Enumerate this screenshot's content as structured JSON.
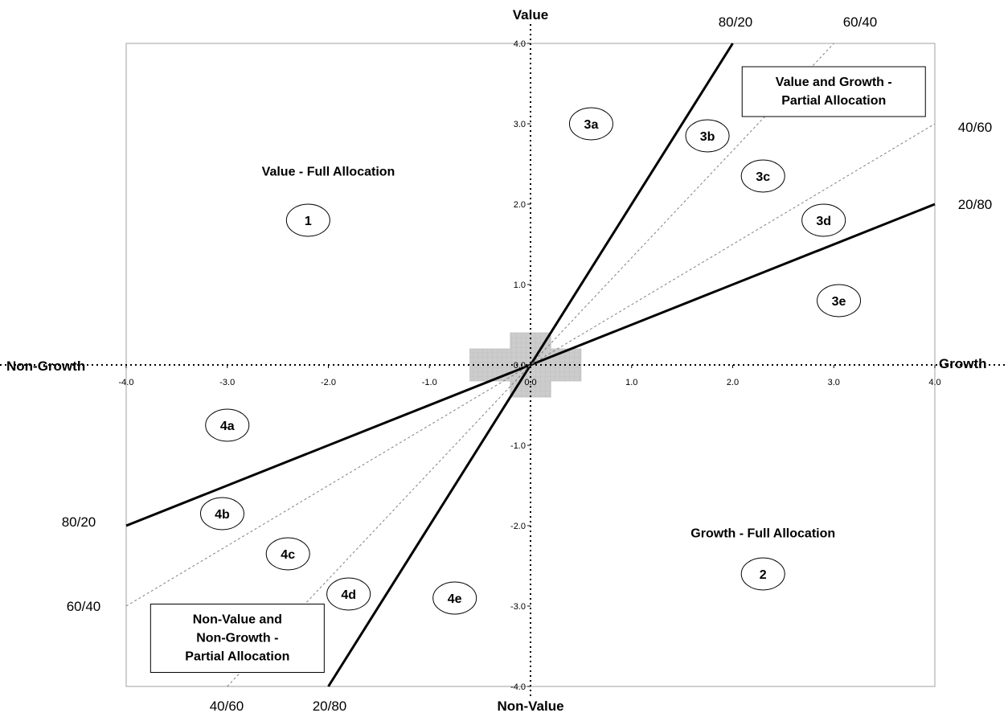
{
  "chart_data": {
    "type": "scatter",
    "title": "",
    "xlim": [
      -4.0,
      4.0
    ],
    "ylim": [
      -4.0,
      4.0
    ],
    "x_ticks": [
      "-4.0",
      "-3.0",
      "-2.0",
      "-1.0",
      "0.0",
      "1.0",
      "2.0",
      "3.0",
      "4.0"
    ],
    "y_ticks": [
      "-4.0",
      "-3.0",
      "-2.0",
      "-1.0",
      "0.0",
      "1.0",
      "2.0",
      "3.0",
      "4.0"
    ],
    "axis_labels": {
      "top": "Value",
      "bottom": "Non-Value",
      "left": "Non-Growth",
      "right": "Growth"
    },
    "grid": false,
    "lines": [
      {
        "style": "solid",
        "slope": 2.0,
        "end_labels": [
          "20/80",
          "80/20"
        ]
      },
      {
        "style": "solid",
        "slope": 0.5,
        "end_labels": [
          "80/20",
          "20/80"
        ]
      },
      {
        "style": "dashed",
        "slope": 1.333,
        "end_labels": [
          "40/60",
          "60/40"
        ]
      },
      {
        "style": "dashed",
        "slope": 0.75,
        "end_labels": [
          "60/40",
          "40/60"
        ]
      }
    ],
    "region_titles": [
      {
        "text": "Value - Full Allocation",
        "x": -2.0,
        "y": 2.4,
        "boxed": false
      },
      {
        "text": "Growth - Full Allocation",
        "x": 2.3,
        "y": -2.1,
        "boxed": false
      },
      {
        "text": "Value and Growth -\nPartial Allocation",
        "x": 3.0,
        "y": 3.4,
        "boxed": true
      },
      {
        "text": "Non-Value and\nNon-Growth -\nPartial Allocation",
        "x": -2.9,
        "y": -3.4,
        "boxed": true
      }
    ],
    "region_markers": [
      {
        "label": "1",
        "x": -2.2,
        "y": 1.8
      },
      {
        "label": "2",
        "x": 2.3,
        "y": -2.6
      },
      {
        "label": "3a",
        "x": 0.6,
        "y": 3.0
      },
      {
        "label": "3b",
        "x": 1.75,
        "y": 2.85
      },
      {
        "label": "3c",
        "x": 2.3,
        "y": 2.35
      },
      {
        "label": "3d",
        "x": 2.9,
        "y": 1.8
      },
      {
        "label": "3e",
        "x": 3.05,
        "y": 0.8
      },
      {
        "label": "4a",
        "x": -3.0,
        "y": -0.75
      },
      {
        "label": "4b",
        "x": -3.05,
        "y": -1.85
      },
      {
        "label": "4c",
        "x": -2.4,
        "y": -2.35
      },
      {
        "label": "4d",
        "x": -1.8,
        "y": -2.85
      },
      {
        "label": "4e",
        "x": -0.75,
        "y": -2.9
      }
    ],
    "center_zone": {
      "fill": "#cccccc"
    }
  }
}
